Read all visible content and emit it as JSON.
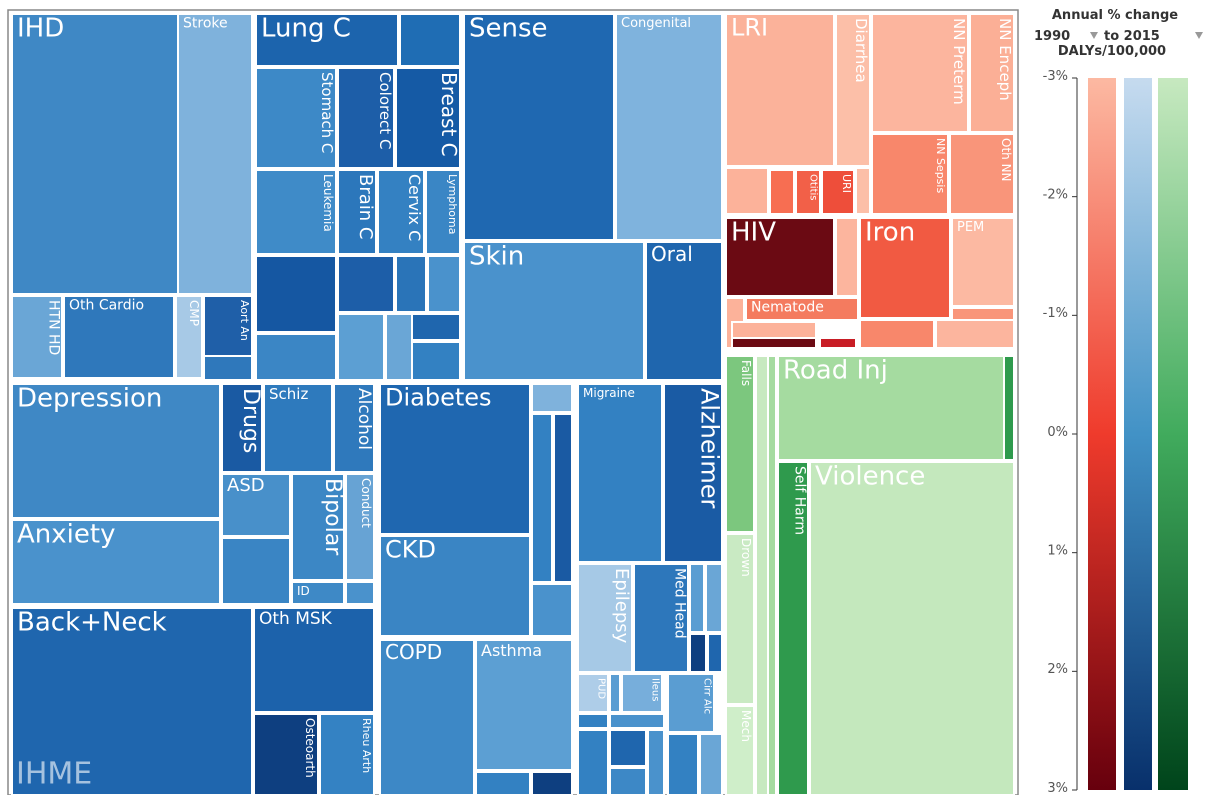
{
  "cells": [
    "IHD",
    "Stroke",
    "HTN HD",
    "Oth Cardio",
    "CMP",
    "Aort An",
    "Lung C",
    "Stomach C",
    "Colorect C",
    "Breast C",
    "Leukemia",
    "Brain C",
    "Cervix C",
    "Lymphoma",
    "Sense",
    "Congenital",
    "Skin",
    "Oral",
    "LRI",
    "Diarrhea",
    "NN Preterm",
    "NN Enceph",
    "NN Sepsis",
    "Oth NN",
    "Otitis",
    "URI",
    "HIV",
    "Iron",
    "PEM",
    "Nematode",
    "Falls",
    "Drown",
    "Mech",
    "Road Inj",
    "Self Harm",
    "Violence",
    "Depression",
    "Anxiety",
    "Drugs",
    "Schiz",
    "Alcohol",
    "ASD",
    "Bipolar",
    "Conduct",
    "ID",
    "Back+Neck",
    "Oth MSK",
    "Osteoarth",
    "Rheu Arth",
    "Diabetes",
    "CKD",
    "COPD",
    "Asthma",
    "Migraine",
    "Alzheimer",
    "Epilepsy",
    "Med Head",
    "PUD",
    "Ileus",
    "Cirr Alc"
  ],
  "watermark": "IHME",
  "legend": {
    "title": "Annual % change",
    "start": "1990",
    "end": "to 2015",
    "metric": "DALYs/100,000",
    "lim": [
      -3,
      3
    ],
    "ticks": [
      {
        "value": -3,
        "label": "-3%"
      },
      {
        "value": -2,
        "label": "-2%"
      },
      {
        "value": -1,
        "label": "-1%"
      },
      {
        "value": 0,
        "label": "0%"
      },
      {
        "value": 1,
        "label": "1%"
      },
      {
        "value": 2,
        "label": "2%"
      },
      {
        "value": 3,
        "label": "3%"
      }
    ]
  }
}
